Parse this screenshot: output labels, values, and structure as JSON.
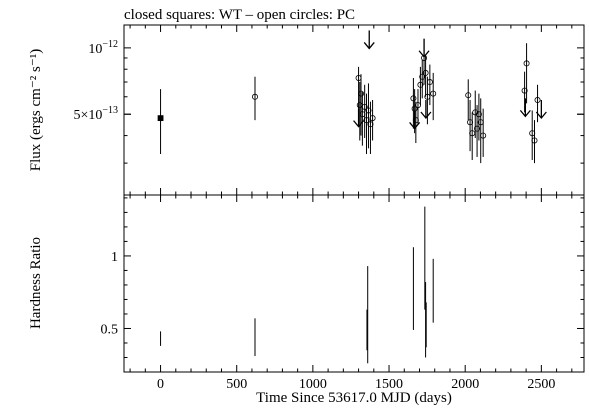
{
  "chart_data": {
    "title": "closed squares: WT – open circles: PC",
    "xlabel": "Time Since 53617.0 MJD (days)",
    "x_ticks": [
      0,
      500,
      1000,
      1500,
      2000,
      2500
    ],
    "xlim": [
      -240,
      2780
    ],
    "panels": [
      {
        "type": "scatter",
        "ylabel": "Flux (ergs cm⁻² s⁻¹)",
        "y_scale": "log",
        "ylim": [
          2.15e-13,
          1.27e-12
        ],
        "y_ticks": [
          {
            "value": 1e-12,
            "mantissa": "",
            "exponent": "−12",
            "base": "10"
          },
          {
            "value": 5e-13,
            "mantissa": "5×",
            "exponent": "−13",
            "base": "10"
          }
        ],
        "series": [
          {
            "marker": "closed-square",
            "points": [
              {
                "x": 0,
                "y": 4.8e-13,
                "ylo": 3.3e-13,
                "yhi": 6.5e-13
              }
            ]
          },
          {
            "marker": "open-circle",
            "points": [
              {
                "x": 620,
                "y": 6e-13,
                "ylo": 4.7e-13,
                "yhi": 7.4e-13
              },
              {
                "x": 1300,
                "y": 7.3e-13,
                "ylo": 4.6e-13,
                "yhi": 8.2e-13
              },
              {
                "x": 1308,
                "y": 5.5e-13,
                "ylo": 3.8e-13,
                "yhi": 7e-13
              },
              {
                "x": 1316,
                "y": 6.2e-13,
                "ylo": 4e-13,
                "yhi": 7.6e-13
              },
              {
                "x": 1325,
                "y": 5e-13,
                "ylo": 3.6e-13,
                "yhi": 6.3e-13
              },
              {
                "x": 1340,
                "y": 5.4e-13,
                "ylo": 3.9e-13,
                "yhi": 6.8e-13
              },
              {
                "x": 1352,
                "y": 4.7e-13,
                "ylo": 3.3e-13,
                "yhi": 6.2e-13
              },
              {
                "x": 1365,
                "y": 5.2e-13,
                "ylo": 3.5e-13,
                "yhi": 6.9e-13
              },
              {
                "x": 1378,
                "y": 4.5e-13,
                "ylo": 3.3e-13,
                "yhi": 5.7e-13
              },
              {
                "x": 1392,
                "y": 4.8e-13,
                "ylo": 3.8e-13,
                "yhi": 5.8e-13
              },
              {
                "x": 1660,
                "y": 5.9e-13,
                "ylo": 4.3e-13,
                "yhi": 7.3e-13
              },
              {
                "x": 1668,
                "y": 5.3e-13,
                "ylo": 4.1e-13,
                "yhi": 6.5e-13
              },
              {
                "x": 1676,
                "y": 4.7e-13,
                "ylo": 3.7e-13,
                "yhi": 5.7e-13
              },
              {
                "x": 1690,
                "y": 5.5e-13,
                "ylo": 4.5e-13,
                "yhi": 6.5e-13
              },
              {
                "x": 1706,
                "y": 6.8e-13,
                "ylo": 5.5e-13,
                "yhi": 8.2e-13
              },
              {
                "x": 1718,
                "y": 7.4e-13,
                "ylo": 5.9e-13,
                "yhi": 8.8e-13
              },
              {
                "x": 1730,
                "y": 9e-13,
                "ylo": 6.8e-13,
                "yhi": 1.1e-12
              },
              {
                "x": 1740,
                "y": 7.7e-13,
                "ylo": 6e-13,
                "yhi": 9.3e-13
              },
              {
                "x": 1752,
                "y": 6e-13,
                "ylo": 4.5e-13,
                "yhi": 7.4e-13
              },
              {
                "x": 1768,
                "y": 7e-13,
                "ylo": 5.5e-13,
                "yhi": 8.4e-13
              },
              {
                "x": 1790,
                "y": 6.2e-13,
                "ylo": 4.7e-13,
                "yhi": 7.7e-13
              },
              {
                "x": 2020,
                "y": 6.1e-13,
                "ylo": 4.7e-13,
                "yhi": 7.2e-13
              },
              {
                "x": 2032,
                "y": 4.6e-13,
                "ylo": 3.4e-13,
                "yhi": 5.8e-13
              },
              {
                "x": 2046,
                "y": 4.1e-13,
                "ylo": 3.1e-13,
                "yhi": 5.1e-13
              },
              {
                "x": 2066,
                "y": 5.1e-13,
                "ylo": 3.9e-13,
                "yhi": 6.4e-13
              },
              {
                "x": 2078,
                "y": 4.3e-13,
                "ylo": 3.2e-13,
                "yhi": 5.5e-13
              },
              {
                "x": 2090,
                "y": 5e-13,
                "ylo": 3.8e-13,
                "yhi": 6.2e-13
              },
              {
                "x": 2102,
                "y": 4.6e-13,
                "ylo": 3e-13,
                "yhi": 5.9e-13
              },
              {
                "x": 2118,
                "y": 4e-13,
                "ylo": 3.2e-13,
                "yhi": 5.3e-13
              },
              {
                "x": 2390,
                "y": 6.4e-13,
                "ylo": 5.1e-13,
                "yhi": 7.8e-13
              },
              {
                "x": 2403,
                "y": 8.5e-13,
                "ylo": 5.6e-13,
                "yhi": 1.05e-12
              },
              {
                "x": 2440,
                "y": 4.1e-13,
                "ylo": 3.1e-13,
                "yhi": 5.2e-13
              },
              {
                "x": 2455,
                "y": 3.8e-13,
                "ylo": 3e-13,
                "yhi": 4.7e-13
              },
              {
                "x": 2475,
                "y": 5.8e-13,
                "ylo": 4.6e-13,
                "yhi": 6.8e-13
              }
            ]
          },
          {
            "marker": "upper-limit",
            "points": [
              {
                "x": 1300,
                "y": 5.3e-13
              },
              {
                "x": 1370,
                "y": 1.2e-12
              },
              {
                "x": 1668,
                "y": 5.2e-13
              },
              {
                "x": 1730,
                "y": 1.1e-12
              },
              {
                "x": 1742,
                "y": 5.8e-13
              },
              {
                "x": 2395,
                "y": 5.9e-13
              },
              {
                "x": 2500,
                "y": 5.8e-13
              }
            ]
          }
        ]
      },
      {
        "type": "scatter",
        "ylabel": "Hardness Ratio",
        "ylim": [
          0.2,
          1.42
        ],
        "y_ticks": [
          {
            "value": 0.5,
            "label": "0.5"
          },
          {
            "value": 1,
            "label": "1"
          }
        ],
        "series": [
          {
            "marker": "error-bar",
            "points": [
              {
                "x": 0,
                "ylo": 0.38,
                "yhi": 0.48
              },
              {
                "x": 620,
                "ylo": 0.31,
                "yhi": 0.57
              },
              {
                "x": 1355,
                "ylo": 0.35,
                "yhi": 0.63
              },
              {
                "x": 1360,
                "ylo": 0.26,
                "yhi": 0.93
              },
              {
                "x": 1660,
                "ylo": 0.49,
                "yhi": 1.06
              },
              {
                "x": 1735,
                "ylo": 0.63,
                "yhi": 1.34
              },
              {
                "x": 1740,
                "ylo": 0.3,
                "yhi": 0.82
              },
              {
                "x": 1744,
                "ylo": 0.37,
                "yhi": 0.68
              },
              {
                "x": 1790,
                "ylo": 0.54,
                "yhi": 0.98
              }
            ]
          }
        ]
      }
    ]
  }
}
